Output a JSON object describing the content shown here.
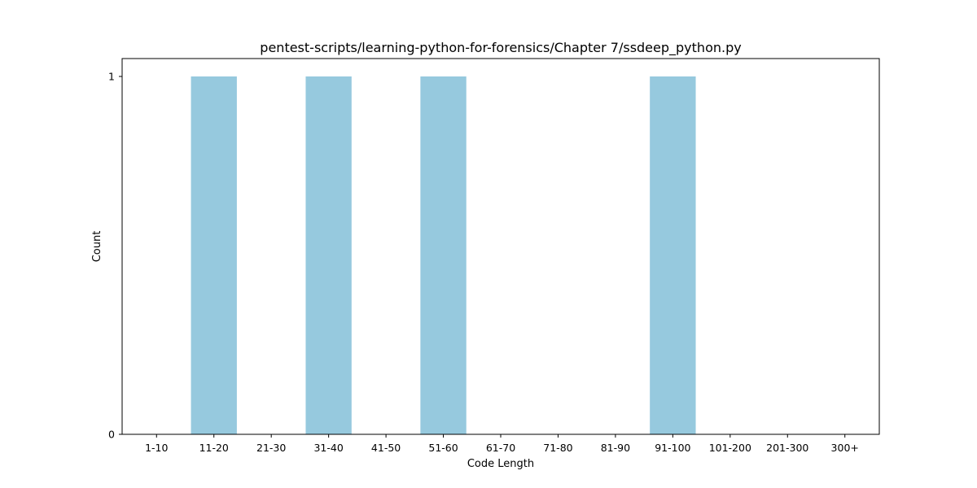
{
  "chart_data": {
    "type": "bar",
    "title": "pentest-scripts/learning-python-for-forensics/Chapter 7/ssdeep_python.py",
    "xlabel": "Code Length",
    "ylabel": "Count",
    "categories": [
      "1-10",
      "11-20",
      "21-30",
      "31-40",
      "41-50",
      "51-60",
      "61-70",
      "71-80",
      "81-90",
      "91-100",
      "101-200",
      "201-300",
      "300+"
    ],
    "values": [
      0,
      1,
      0,
      1,
      0,
      1,
      0,
      0,
      0,
      1,
      0,
      0,
      0
    ],
    "ylim": [
      0,
      1
    ],
    "yticks": [
      "0",
      "1"
    ],
    "grid": false,
    "bar_color": "#96c9de"
  }
}
